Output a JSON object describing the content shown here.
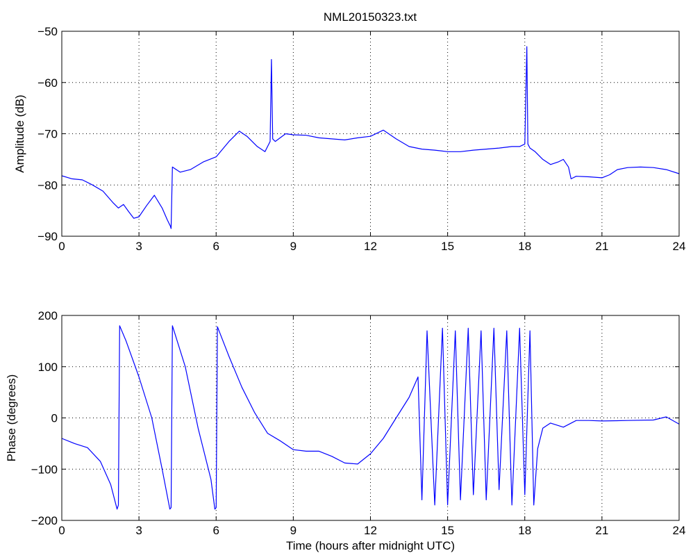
{
  "figure": {
    "title": "NML20150323.txt",
    "background": "#ffffff"
  },
  "chart_data": [
    {
      "type": "line",
      "title": "NML20150323.txt",
      "xlabel": "",
      "ylabel": "Amplitude (dB)",
      "xlim": [
        0,
        24
      ],
      "ylim": [
        -90,
        -50
      ],
      "xticks": [
        0,
        3,
        6,
        9,
        12,
        15,
        18,
        21,
        24
      ],
      "xtick_labels": [
        "0",
        "3",
        "6",
        "9",
        "12",
        "15",
        "18",
        "21",
        "24"
      ],
      "yticks": [
        -90,
        -80,
        -70,
        -60,
        -50
      ],
      "ytick_labels": [
        "−90",
        "−80",
        "−70",
        "−60",
        "−50"
      ],
      "grid": true,
      "line_color": "#0000ff",
      "series": [
        {
          "x": [
            0,
            0.4,
            0.8,
            1.2,
            1.6,
            2.0,
            2.2,
            2.4,
            2.6,
            2.8,
            3.0,
            3.3,
            3.6,
            3.9,
            4.1,
            4.22,
            4.25,
            4.3,
            4.6,
            5.0,
            5.5,
            6.0,
            6.5,
            6.9,
            7.2,
            7.6,
            7.9,
            8.1,
            8.15,
            8.2,
            8.3,
            8.7,
            9.0,
            9.5,
            10.0,
            10.5,
            11.0,
            11.5,
            12.0,
            12.5,
            13.0,
            13.5,
            14.0,
            14.5,
            15.0,
            15.5,
            16.0,
            16.5,
            17.0,
            17.5,
            17.8,
            18.0,
            18.08,
            18.12,
            18.2,
            18.4,
            18.7,
            19.0,
            19.3,
            19.5,
            19.7,
            19.8,
            20.0,
            20.5,
            21.0,
            21.3,
            21.6,
            22.0,
            22.5,
            23.0,
            23.5,
            24.0
          ],
          "y": [
            -78.2,
            -78.8,
            -79.0,
            -80.0,
            -81.2,
            -83.5,
            -84.5,
            -83.8,
            -85.2,
            -86.5,
            -86.2,
            -84.0,
            -82.0,
            -84.5,
            -86.8,
            -88.0,
            -88.5,
            -76.5,
            -77.5,
            -77.0,
            -75.5,
            -74.5,
            -71.5,
            -69.5,
            -70.5,
            -72.5,
            -73.5,
            -71.5,
            -55.5,
            -71.0,
            -71.5,
            -70.0,
            -70.2,
            -70.3,
            -70.8,
            -71.0,
            -71.2,
            -70.8,
            -70.5,
            -69.3,
            -71.0,
            -72.5,
            -73.0,
            -73.2,
            -73.5,
            -73.5,
            -73.2,
            -73.0,
            -72.8,
            -72.5,
            -72.5,
            -72.0,
            -53.0,
            -72.0,
            -72.8,
            -73.5,
            -75.0,
            -76.0,
            -75.5,
            -75.0,
            -76.5,
            -78.8,
            -78.3,
            -78.4,
            -78.6,
            -78.0,
            -77.0,
            -76.6,
            -76.5,
            -76.6,
            -77.0,
            -77.8
          ]
        }
      ]
    },
    {
      "type": "line",
      "title": "",
      "xlabel": "Time (hours after midnight UTC)",
      "ylabel": "Phase (degrees)",
      "xlim": [
        0,
        24
      ],
      "ylim": [
        -200,
        200
      ],
      "xticks": [
        0,
        3,
        6,
        9,
        12,
        15,
        18,
        21,
        24
      ],
      "xtick_labels": [
        "0",
        "3",
        "6",
        "9",
        "12",
        "15",
        "18",
        "21",
        "24"
      ],
      "yticks": [
        -200,
        -100,
        0,
        100,
        200
      ],
      "ytick_labels": [
        "−200",
        "−100",
        "0",
        "100",
        "200"
      ],
      "grid": true,
      "line_color": "#0000ff",
      "series": [
        {
          "x": [
            0,
            0.5,
            1.0,
            1.5,
            1.9,
            2.15,
            2.2,
            2.25,
            2.5,
            3.0,
            3.5,
            3.9,
            4.2,
            4.25,
            4.3,
            4.8,
            5.3,
            5.8,
            5.95,
            6.0,
            6.05,
            6.5,
            7.0,
            7.5,
            8.0,
            8.5,
            9.0,
            9.5,
            10.0,
            10.5,
            11.0,
            11.5,
            12.0,
            12.5,
            13.0,
            13.5,
            13.85,
            14.0,
            14.2,
            14.5,
            14.8,
            15.0,
            15.3,
            15.5,
            15.8,
            16.0,
            16.3,
            16.5,
            16.8,
            17.0,
            17.3,
            17.5,
            17.8,
            18.0,
            18.2,
            18.35,
            18.5,
            18.7,
            19.0,
            19.5,
            20.0,
            20.5,
            21.0,
            22.0,
            23.0,
            23.5,
            24.0
          ],
          "y": [
            -40,
            -50,
            -58,
            -85,
            -130,
            -178,
            -170,
            180,
            150,
            80,
            0,
            -100,
            -178,
            -175,
            180,
            100,
            -20,
            -120,
            -178,
            -175,
            178,
            120,
            60,
            10,
            -30,
            -45,
            -62,
            -65,
            -65,
            -75,
            -88,
            -90,
            -70,
            -40,
            0,
            40,
            80,
            -160,
            170,
            -170,
            175,
            -170,
            170,
            -160,
            175,
            -150,
            170,
            -160,
            175,
            -140,
            170,
            -170,
            175,
            -150,
            170,
            -170,
            -60,
            -20,
            -10,
            -18,
            -5,
            -5,
            -6,
            -5,
            -4,
            2,
            -12
          ]
        }
      ]
    }
  ]
}
